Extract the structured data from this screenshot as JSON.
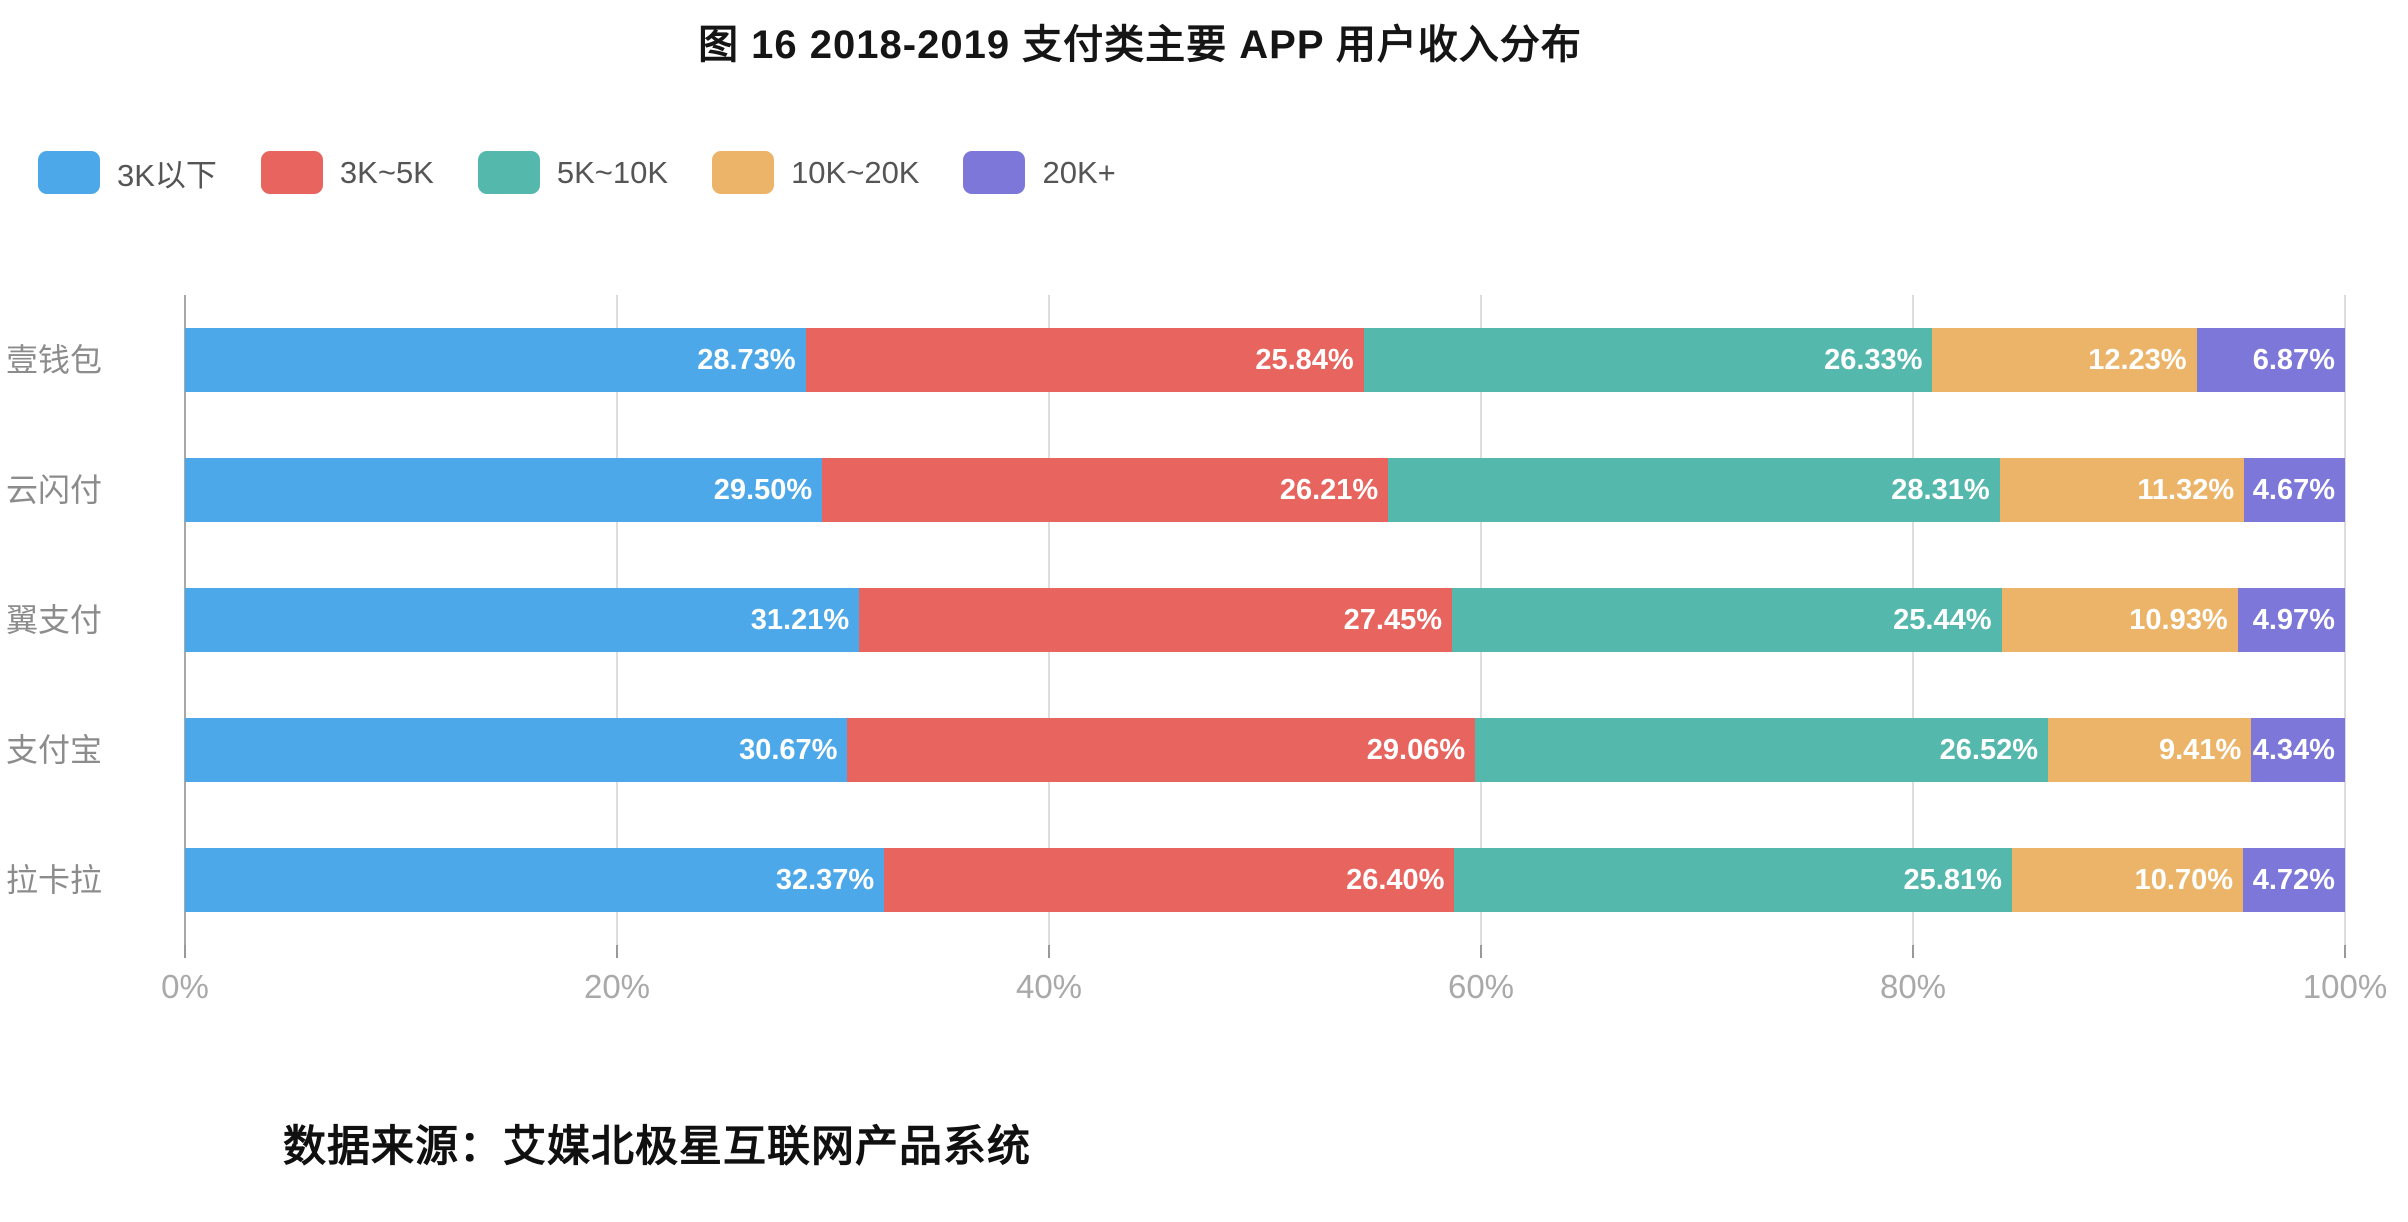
{
  "title": "图 16  2018-2019 支付类主要 APP 用户收入分布",
  "source": "数据来源：艾媒北极星互联网产品系统",
  "colors": {
    "blue": "#4CA8E8",
    "red": "#E7645F",
    "teal": "#55B8AC",
    "orange": "#ECB469",
    "purple": "#7C77D8",
    "axis_line": "#a8a8a8",
    "gridline": "#dddddd"
  },
  "legend": {
    "items": [
      {
        "label": "3K以下",
        "color": "#4CA8E8"
      },
      {
        "label": "3K~5K",
        "color": "#E7645F"
      },
      {
        "label": "5K~10K",
        "color": "#55B8AC"
      },
      {
        "label": "10K~20K",
        "color": "#ECB469"
      },
      {
        "label": "20K+",
        "color": "#7C77D8"
      }
    ]
  },
  "chart_data": {
    "type": "bar",
    "orientation": "horizontal",
    "stacked": true,
    "title": "图 16  2018-2019 支付类主要 APP 用户收入分布",
    "categories": [
      "壹钱包",
      "云闪付",
      "翼支付",
      "支付宝",
      "拉卡拉"
    ],
    "series": [
      {
        "name": "3K以下",
        "color": "#4CA8E8",
        "values": [
          28.73,
          29.5,
          31.21,
          30.67,
          32.37
        ]
      },
      {
        "name": "3K~5K",
        "color": "#E7645F",
        "values": [
          25.84,
          26.21,
          27.45,
          29.06,
          26.4
        ]
      },
      {
        "name": "5K~10K",
        "color": "#55B8AC",
        "values": [
          26.33,
          28.31,
          25.44,
          26.52,
          25.81
        ]
      },
      {
        "name": "10K~20K",
        "color": "#ECB469",
        "values": [
          12.23,
          11.32,
          10.93,
          9.41,
          10.7
        ]
      },
      {
        "name": "20K+",
        "color": "#7C77D8",
        "values": [
          6.87,
          4.67,
          4.97,
          4.34,
          4.72
        ]
      }
    ],
    "value_label_suffix": "%",
    "value_label_decimals": 2,
    "x_ticks": [
      "0%",
      "20%",
      "40%",
      "60%",
      "80%",
      "100%"
    ],
    "x_tick_values": [
      0,
      20,
      40,
      60,
      80,
      100
    ],
    "xlim": [
      0,
      100
    ],
    "grid": true,
    "legend_position": "top-left",
    "xlabel": "",
    "ylabel": ""
  }
}
